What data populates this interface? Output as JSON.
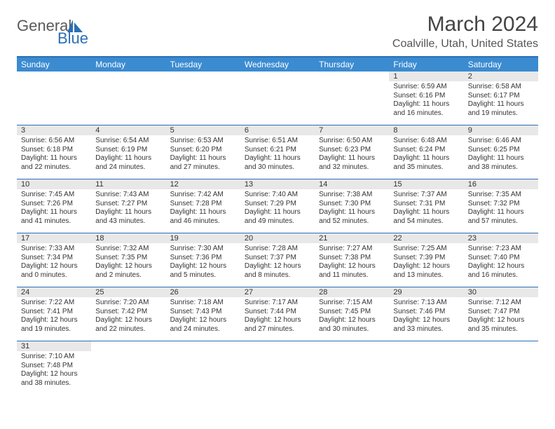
{
  "logo": {
    "text1": "General",
    "text2": "Blue"
  },
  "title": "March 2024",
  "location": "Coalville, Utah, United States",
  "header_bg": "#3b8bd1",
  "header_border": "#2b6fb5",
  "daynum_bg": "#e8e8e8",
  "day_names": [
    "Sunday",
    "Monday",
    "Tuesday",
    "Wednesday",
    "Thursday",
    "Friday",
    "Saturday"
  ],
  "weeks": [
    [
      null,
      null,
      null,
      null,
      null,
      {
        "num": "1",
        "sunrise": "Sunrise: 6:59 AM",
        "sunset": "Sunset: 6:16 PM",
        "day1": "Daylight: 11 hours",
        "day2": "and 16 minutes."
      },
      {
        "num": "2",
        "sunrise": "Sunrise: 6:58 AM",
        "sunset": "Sunset: 6:17 PM",
        "day1": "Daylight: 11 hours",
        "day2": "and 19 minutes."
      }
    ],
    [
      {
        "num": "3",
        "sunrise": "Sunrise: 6:56 AM",
        "sunset": "Sunset: 6:18 PM",
        "day1": "Daylight: 11 hours",
        "day2": "and 22 minutes."
      },
      {
        "num": "4",
        "sunrise": "Sunrise: 6:54 AM",
        "sunset": "Sunset: 6:19 PM",
        "day1": "Daylight: 11 hours",
        "day2": "and 24 minutes."
      },
      {
        "num": "5",
        "sunrise": "Sunrise: 6:53 AM",
        "sunset": "Sunset: 6:20 PM",
        "day1": "Daylight: 11 hours",
        "day2": "and 27 minutes."
      },
      {
        "num": "6",
        "sunrise": "Sunrise: 6:51 AM",
        "sunset": "Sunset: 6:21 PM",
        "day1": "Daylight: 11 hours",
        "day2": "and 30 minutes."
      },
      {
        "num": "7",
        "sunrise": "Sunrise: 6:50 AM",
        "sunset": "Sunset: 6:23 PM",
        "day1": "Daylight: 11 hours",
        "day2": "and 32 minutes."
      },
      {
        "num": "8",
        "sunrise": "Sunrise: 6:48 AM",
        "sunset": "Sunset: 6:24 PM",
        "day1": "Daylight: 11 hours",
        "day2": "and 35 minutes."
      },
      {
        "num": "9",
        "sunrise": "Sunrise: 6:46 AM",
        "sunset": "Sunset: 6:25 PM",
        "day1": "Daylight: 11 hours",
        "day2": "and 38 minutes."
      }
    ],
    [
      {
        "num": "10",
        "sunrise": "Sunrise: 7:45 AM",
        "sunset": "Sunset: 7:26 PM",
        "day1": "Daylight: 11 hours",
        "day2": "and 41 minutes."
      },
      {
        "num": "11",
        "sunrise": "Sunrise: 7:43 AM",
        "sunset": "Sunset: 7:27 PM",
        "day1": "Daylight: 11 hours",
        "day2": "and 43 minutes."
      },
      {
        "num": "12",
        "sunrise": "Sunrise: 7:42 AM",
        "sunset": "Sunset: 7:28 PM",
        "day1": "Daylight: 11 hours",
        "day2": "and 46 minutes."
      },
      {
        "num": "13",
        "sunrise": "Sunrise: 7:40 AM",
        "sunset": "Sunset: 7:29 PM",
        "day1": "Daylight: 11 hours",
        "day2": "and 49 minutes."
      },
      {
        "num": "14",
        "sunrise": "Sunrise: 7:38 AM",
        "sunset": "Sunset: 7:30 PM",
        "day1": "Daylight: 11 hours",
        "day2": "and 52 minutes."
      },
      {
        "num": "15",
        "sunrise": "Sunrise: 7:37 AM",
        "sunset": "Sunset: 7:31 PM",
        "day1": "Daylight: 11 hours",
        "day2": "and 54 minutes."
      },
      {
        "num": "16",
        "sunrise": "Sunrise: 7:35 AM",
        "sunset": "Sunset: 7:32 PM",
        "day1": "Daylight: 11 hours",
        "day2": "and 57 minutes."
      }
    ],
    [
      {
        "num": "17",
        "sunrise": "Sunrise: 7:33 AM",
        "sunset": "Sunset: 7:34 PM",
        "day1": "Daylight: 12 hours",
        "day2": "and 0 minutes."
      },
      {
        "num": "18",
        "sunrise": "Sunrise: 7:32 AM",
        "sunset": "Sunset: 7:35 PM",
        "day1": "Daylight: 12 hours",
        "day2": "and 2 minutes."
      },
      {
        "num": "19",
        "sunrise": "Sunrise: 7:30 AM",
        "sunset": "Sunset: 7:36 PM",
        "day1": "Daylight: 12 hours",
        "day2": "and 5 minutes."
      },
      {
        "num": "20",
        "sunrise": "Sunrise: 7:28 AM",
        "sunset": "Sunset: 7:37 PM",
        "day1": "Daylight: 12 hours",
        "day2": "and 8 minutes."
      },
      {
        "num": "21",
        "sunrise": "Sunrise: 7:27 AM",
        "sunset": "Sunset: 7:38 PM",
        "day1": "Daylight: 12 hours",
        "day2": "and 11 minutes."
      },
      {
        "num": "22",
        "sunrise": "Sunrise: 7:25 AM",
        "sunset": "Sunset: 7:39 PM",
        "day1": "Daylight: 12 hours",
        "day2": "and 13 minutes."
      },
      {
        "num": "23",
        "sunrise": "Sunrise: 7:23 AM",
        "sunset": "Sunset: 7:40 PM",
        "day1": "Daylight: 12 hours",
        "day2": "and 16 minutes."
      }
    ],
    [
      {
        "num": "24",
        "sunrise": "Sunrise: 7:22 AM",
        "sunset": "Sunset: 7:41 PM",
        "day1": "Daylight: 12 hours",
        "day2": "and 19 minutes."
      },
      {
        "num": "25",
        "sunrise": "Sunrise: 7:20 AM",
        "sunset": "Sunset: 7:42 PM",
        "day1": "Daylight: 12 hours",
        "day2": "and 22 minutes."
      },
      {
        "num": "26",
        "sunrise": "Sunrise: 7:18 AM",
        "sunset": "Sunset: 7:43 PM",
        "day1": "Daylight: 12 hours",
        "day2": "and 24 minutes."
      },
      {
        "num": "27",
        "sunrise": "Sunrise: 7:17 AM",
        "sunset": "Sunset: 7:44 PM",
        "day1": "Daylight: 12 hours",
        "day2": "and 27 minutes."
      },
      {
        "num": "28",
        "sunrise": "Sunrise: 7:15 AM",
        "sunset": "Sunset: 7:45 PM",
        "day1": "Daylight: 12 hours",
        "day2": "and 30 minutes."
      },
      {
        "num": "29",
        "sunrise": "Sunrise: 7:13 AM",
        "sunset": "Sunset: 7:46 PM",
        "day1": "Daylight: 12 hours",
        "day2": "and 33 minutes."
      },
      {
        "num": "30",
        "sunrise": "Sunrise: 7:12 AM",
        "sunset": "Sunset: 7:47 PM",
        "day1": "Daylight: 12 hours",
        "day2": "and 35 minutes."
      }
    ],
    [
      {
        "num": "31",
        "sunrise": "Sunrise: 7:10 AM",
        "sunset": "Sunset: 7:48 PM",
        "day1": "Daylight: 12 hours",
        "day2": "and 38 minutes."
      },
      null,
      null,
      null,
      null,
      null,
      null
    ]
  ]
}
